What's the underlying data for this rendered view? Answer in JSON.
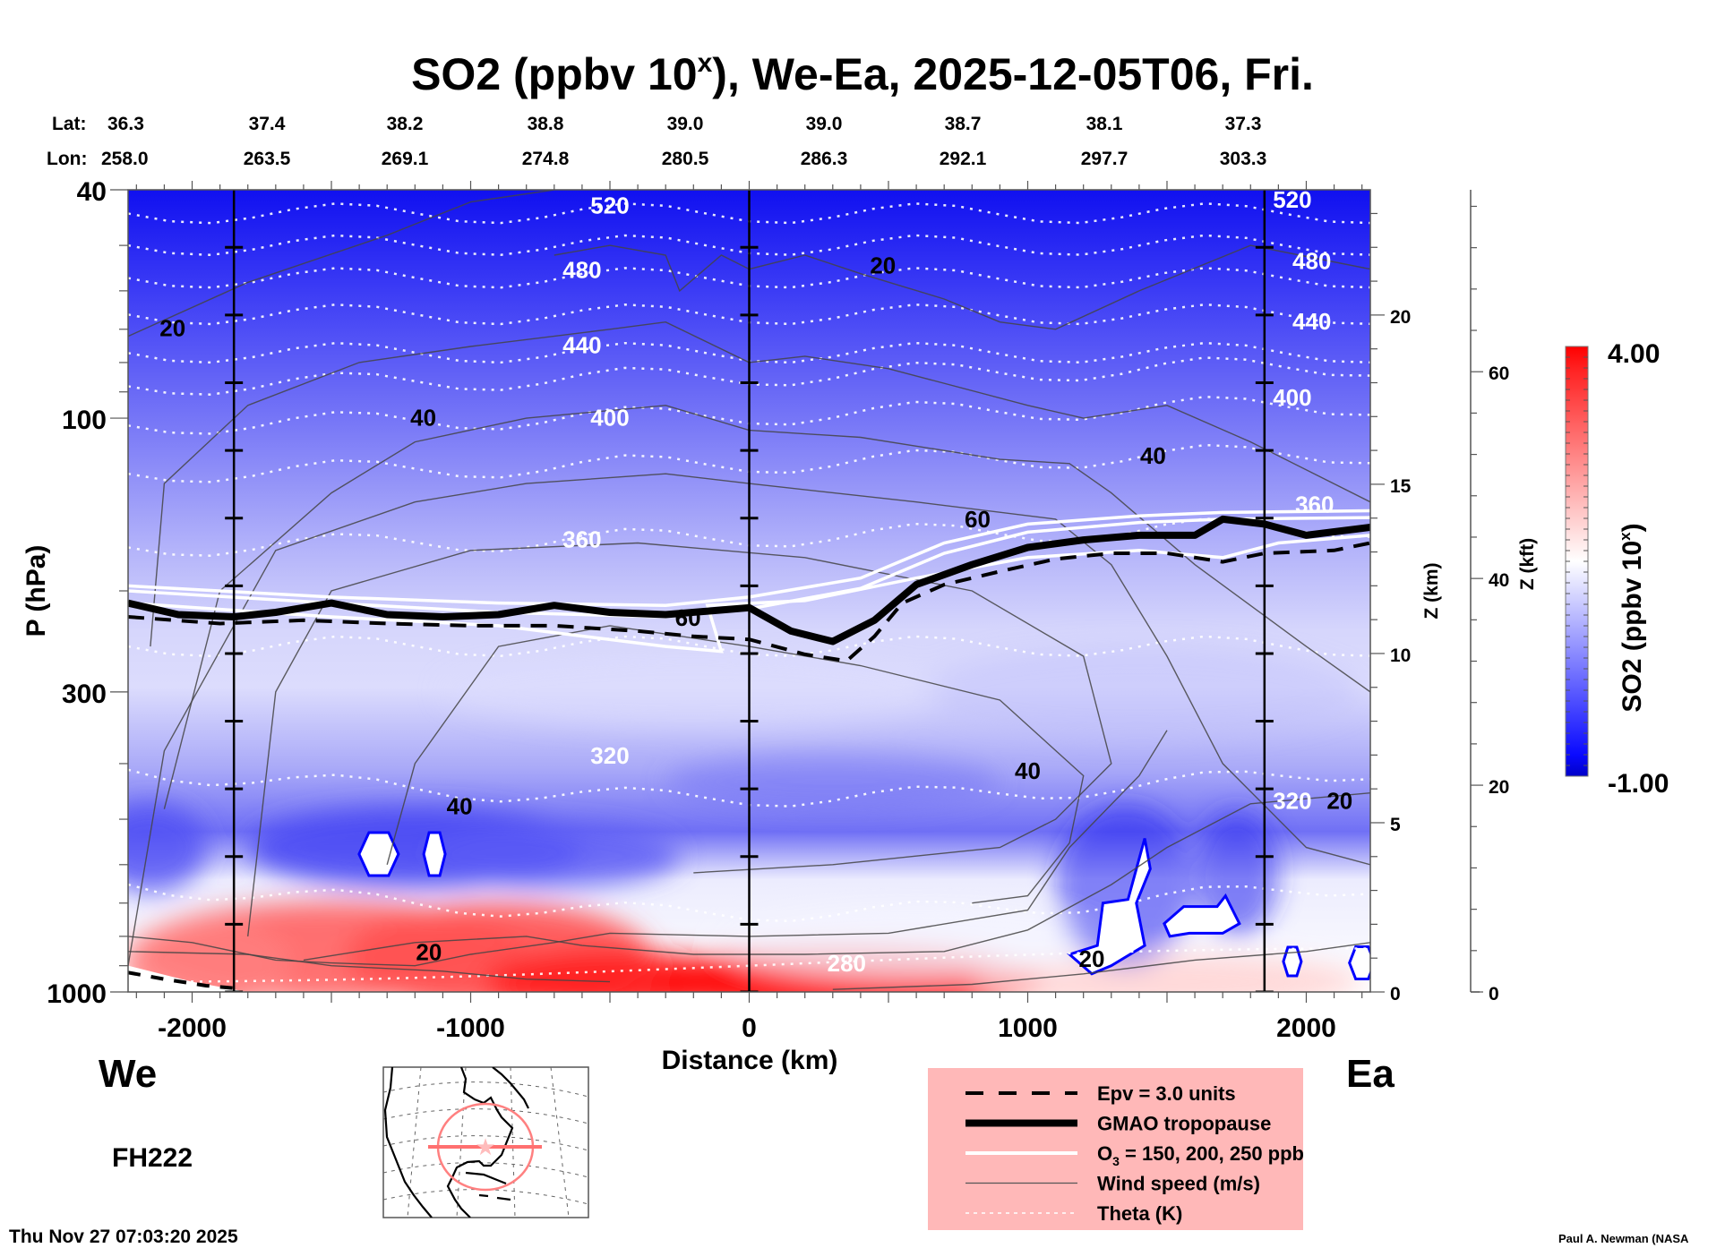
{
  "chart_data": {
    "type": "heatmap",
    "title": "SO2 (ppbv 10",
    "title_superscript": "x",
    "title_suffix": "), We-Ea, 2025-12-05T06, Fri.",
    "xlabel": "Distance (km)",
    "ylabel": "P (hPa)",
    "y2label": "Z (km)",
    "y3label": "Z (kft)",
    "xlim": [
      -2230,
      2230
    ],
    "ylim_hpa": [
      1000,
      40
    ],
    "y_scale": "log",
    "x_ticks": [
      -2000,
      -1000,
      0,
      1000,
      2000
    ],
    "y_ticks_hpa": [
      40,
      100,
      300,
      1000
    ],
    "z_km_ticks": [
      0,
      5,
      10,
      15,
      20
    ],
    "z_kft_ticks": [
      0,
      20,
      40,
      60
    ],
    "z_km_range": [
      0,
      23.7
    ],
    "z_kft_range": [
      0,
      77.6
    ],
    "vertical_markers_km": [
      -1850,
      0,
      1850
    ],
    "lat_label": "Lat:",
    "lon_label": "Lon:",
    "lat_lon_columns": [
      {
        "lat": "36.3",
        "lon": "258.0"
      },
      {
        "lat": "37.4",
        "lon": "263.5"
      },
      {
        "lat": "38.2",
        "lon": "269.1"
      },
      {
        "lat": "38.8",
        "lon": "274.8"
      },
      {
        "lat": "39.0",
        "lon": "280.5"
      },
      {
        "lat": "39.0",
        "lon": "286.3"
      },
      {
        "lat": "38.7",
        "lon": "292.1"
      },
      {
        "lat": "38.1",
        "lon": "297.7"
      },
      {
        "lat": "37.3",
        "lon": "303.3"
      }
    ],
    "colorbar": {
      "label": "SO2 (ppbv 10",
      "label_superscript": "x",
      "label_suffix": ")",
      "min": -1.0,
      "max": 4.0,
      "min_label": "-1.00",
      "max_label": "4.00",
      "low_color": "#0000c8",
      "mid_color": "#ffffff",
      "high_color": "#ff0000",
      "mid_value": 1.5
    },
    "theta_contours_K": [
      280,
      320,
      360,
      400,
      440,
      480,
      520
    ],
    "wind_contours_ms": [
      20,
      40,
      60
    ],
    "theta_labels": [
      {
        "text": "520",
        "x_km": -500,
        "p": 44
      },
      {
        "text": "480",
        "x_km": -600,
        "p": 57
      },
      {
        "text": "440",
        "x_km": -600,
        "p": 77
      },
      {
        "text": "400",
        "x_km": -500,
        "p": 103
      },
      {
        "text": "360",
        "x_km": -600,
        "p": 168
      },
      {
        "text": "320",
        "x_km": -500,
        "p": 400
      },
      {
        "text": "280",
        "x_km": 350,
        "p": 920
      },
      {
        "text": "520",
        "x_km": 1950,
        "p": 43
      },
      {
        "text": "480",
        "x_km": 2020,
        "p": 55
      },
      {
        "text": "440",
        "x_km": 2020,
        "p": 70
      },
      {
        "text": "400",
        "x_km": 1950,
        "p": 95
      },
      {
        "text": "360",
        "x_km": 2030,
        "p": 146
      },
      {
        "text": "320",
        "x_km": 1950,
        "p": 480
      }
    ],
    "wind_labels": [
      {
        "text": "20",
        "x_km": -2070,
        "p": 72
      },
      {
        "text": "20",
        "x_km": 480,
        "p": 56
      },
      {
        "text": "40",
        "x_km": -1170,
        "p": 103
      },
      {
        "text": "40",
        "x_km": 1450,
        "p": 120
      },
      {
        "text": "60",
        "x_km": 820,
        "p": 155
      },
      {
        "text": "60",
        "x_km": -220,
        "p": 230
      },
      {
        "text": "40",
        "x_km": -1040,
        "p": 490
      },
      {
        "text": "40",
        "x_km": 1000,
        "p": 425
      },
      {
        "text": "20",
        "x_km": -1150,
        "p": 880
      },
      {
        "text": "20",
        "x_km": 1230,
        "p": 905
      },
      {
        "text": "20",
        "x_km": 2120,
        "p": 480
      }
    ],
    "legend": [
      {
        "style": "dashed-black",
        "label": "Epv = 3.0 units"
      },
      {
        "style": "thick-black",
        "label": "GMAO tropopause"
      },
      {
        "style": "white",
        "label": "O3 = 150, 200, 250 ppb",
        "label_main": "O",
        "label_sub": "3",
        "label_rest": " = 150, 200, 250 ppb"
      },
      {
        "style": "thin-gray",
        "label": "Wind speed (m/s)"
      },
      {
        "style": "dotted-white",
        "label": "Theta (K)"
      }
    ],
    "legend_bg": "#ffb8b8",
    "tropopause_hpa": [
      [
        -2230,
        210
      ],
      [
        -2050,
        220
      ],
      [
        -1850,
        222
      ],
      [
        -1700,
        218
      ],
      [
        -1500,
        210
      ],
      [
        -1300,
        220
      ],
      [
        -1100,
        222
      ],
      [
        -900,
        220
      ],
      [
        -700,
        212
      ],
      [
        -500,
        218
      ],
      [
        -300,
        220
      ],
      [
        -100,
        216
      ],
      [
        0,
        214
      ],
      [
        150,
        235
      ],
      [
        300,
        245
      ],
      [
        450,
        225
      ],
      [
        600,
        195
      ],
      [
        800,
        180
      ],
      [
        1000,
        168
      ],
      [
        1200,
        163
      ],
      [
        1400,
        160
      ],
      [
        1600,
        160
      ],
      [
        1700,
        150
      ],
      [
        1850,
        153
      ],
      [
        2000,
        160
      ],
      [
        2230,
        155
      ]
    ],
    "epv_hpa": [
      [
        -2230,
        222
      ],
      [
        -1900,
        228
      ],
      [
        -1600,
        225
      ],
      [
        -1300,
        228
      ],
      [
        -1000,
        230
      ],
      [
        -700,
        230
      ],
      [
        -400,
        235
      ],
      [
        -200,
        240
      ],
      [
        0,
        243
      ],
      [
        200,
        258
      ],
      [
        350,
        265
      ],
      [
        450,
        240
      ],
      [
        550,
        210
      ],
      [
        700,
        195
      ],
      [
        900,
        185
      ],
      [
        1100,
        176
      ],
      [
        1300,
        172
      ],
      [
        1500,
        172
      ],
      [
        1700,
        178
      ],
      [
        1850,
        172
      ],
      [
        2100,
        170
      ],
      [
        2230,
        165
      ]
    ],
    "o3_contours_hpa": [
      [
        [
          -2230,
          196
        ],
        [
          -1500,
          205
        ],
        [
          -900,
          210
        ],
        [
          -300,
          212
        ],
        [
          0,
          205
        ],
        [
          400,
          190
        ],
        [
          700,
          165
        ],
        [
          1000,
          153
        ],
        [
          1400,
          148
        ],
        [
          1700,
          146
        ],
        [
          2230,
          145
        ]
      ],
      [
        [
          -2230,
          200
        ],
        [
          -1500,
          210
        ],
        [
          -900,
          218
        ],
        [
          -300,
          222
        ],
        [
          0,
          215
        ],
        [
          400,
          198
        ],
        [
          700,
          172
        ],
        [
          1000,
          158
        ],
        [
          1400,
          152
        ],
        [
          1700,
          150
        ],
        [
          2230,
          149
        ]
      ],
      [
        [
          -2230,
          210
        ],
        [
          -1500,
          222
        ],
        [
          -900,
          230
        ],
        [
          -300,
          250
        ],
        [
          -100,
          255
        ],
        [
          -150,
          212
        ],
        [
          200,
          208
        ],
        [
          600,
          190
        ],
        [
          1000,
          175
        ],
        [
          1400,
          170
        ],
        [
          1700,
          175
        ],
        [
          1900,
          165
        ],
        [
          2230,
          160
        ]
      ]
    ],
    "inset_map": {
      "region": "North America",
      "track_color": "#ff7070",
      "center_marker": "star"
    },
    "text_labels": {
      "west": "We",
      "east": "Ea",
      "forecast_hour": "FH222",
      "run_timestamp": "Thu Nov 27 07:03:20 2025",
      "credit": "Paul A. Newman (NASA"
    }
  }
}
